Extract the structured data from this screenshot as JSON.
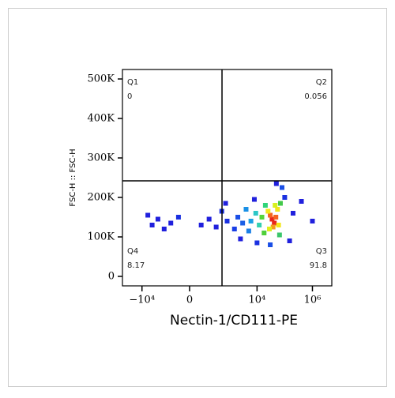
{
  "chart_data": {
    "type": "scatter",
    "x_label": "Nectin-1/CD111-PE",
    "y_label": "FSC-H :: FSC-H",
    "xscale": "biexponential",
    "xlim": [
      -100000,
      5000000
    ],
    "ylim": [
      -24000,
      524000
    ],
    "xticks": [
      {
        "value": -10000,
        "label": "−10⁴"
      },
      0,
      {
        "value": 10000,
        "label": "10⁴"
      },
      {
        "value": 1000000,
        "label": "10⁶"
      }
    ],
    "yticks": [
      0,
      {
        "value": 100000,
        "label": "100K"
      },
      {
        "value": 200000,
        "label": "200K"
      },
      {
        "value": 300000,
        "label": "300K"
      },
      {
        "value": 400000,
        "label": "400K"
      },
      {
        "value": 500000,
        "label": "500K"
      }
    ],
    "gate_x": 510,
    "gate_y": 242000,
    "quadrants": [
      {
        "name": "Q1",
        "value": 0
      },
      {
        "name": "Q2",
        "value": 0.056
      },
      {
        "name": "Q3",
        "value": 91.8
      },
      {
        "name": "Q4",
        "value": 8.17
      }
    ],
    "x": [
      35000,
      42000,
      30000,
      48000,
      38000,
      25000,
      55000,
      28000,
      60000,
      45000,
      15000,
      18000,
      70000,
      20000,
      65000,
      12000,
      9000,
      6000,
      5000,
      4000,
      3000,
      2000,
      1500,
      800,
      500,
      300,
      150,
      60,
      -100,
      -300,
      -700,
      -1500,
      -3000,
      -5000,
      80000,
      100000,
      200000,
      400000,
      1000000,
      150000,
      30000,
      10000,
      50000,
      8000,
      2500,
      700
    ],
    "values": [
      145000,
      135000,
      155000,
      150000,
      125000,
      165000,
      170000,
      120000,
      130000,
      180000,
      150000,
      110000,
      185000,
      180000,
      105000,
      130000,
      160000,
      140000,
      115000,
      170000,
      135000,
      150000,
      120000,
      140000,
      165000,
      125000,
      145000,
      130000,
      150000,
      135000,
      120000,
      145000,
      130000,
      155000,
      225000,
      200000,
      160000,
      190000,
      140000,
      90000,
      80000,
      85000,
      235000,
      195000,
      95000,
      185000
    ],
    "colors": [
      "#e8251c",
      "#e8251c",
      "#f5631f",
      "#f5631f",
      "#f59a1f",
      "#f2e61a",
      "#f2e61a",
      "#e0ef1c",
      "#f2e61a",
      "#d7f01e",
      "#56d43a",
      "#4fcf3a",
      "#43c94a",
      "#2fd47a",
      "#3ac66a",
      "#33d0b0",
      "#2cc7c7",
      "#1aa0e6",
      "#1a7fe6",
      "#1a90e6",
      "#1a5fe6",
      "#1a4fe6",
      "#1a3fe6",
      "#1a30e0",
      "#1a30e0",
      "#2020dd",
      "#2020dd",
      "#2020dd",
      "#1a30e0",
      "#2020dd",
      "#2020dd",
      "#2020dd",
      "#2020dd",
      "#2020dd",
      "#1a4fe6",
      "#1a30e0",
      "#2020dd",
      "#2020dd",
      "#2020dd",
      "#2020dd",
      "#1a4fe6",
      "#1a30e0",
      "#2020dd",
      "#2020dd",
      "#2020dd",
      "#2020dd"
    ]
  }
}
